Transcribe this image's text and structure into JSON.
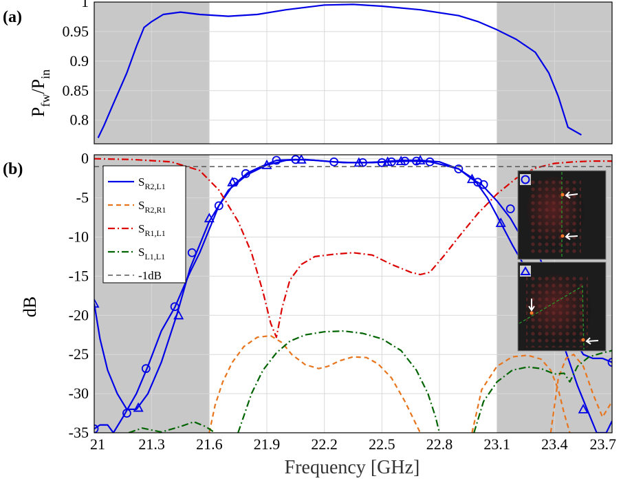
{
  "colors": {
    "shade": "#c8c8c8",
    "grid": "#d9d9d9",
    "blue": "#0000e6",
    "orange": "#e8741c",
    "red": "#dd0000",
    "green": "#006400",
    "ref": "#555555"
  },
  "chart_data": [
    {
      "panel": "(a)",
      "type": "line",
      "ylabel": "P_fw/P_in",
      "ylabel_main": "P",
      "ylabel_sub1": "fw",
      "ylabel_mid": "/P",
      "ylabel_sub2": "in",
      "xlim": [
        21,
        23.7
      ],
      "ylim": [
        0.76,
        1.0
      ],
      "yticks": [
        "1",
        "0.95",
        "0.9",
        "0.85",
        "0.8"
      ],
      "yticks_values": [
        1.0,
        0.95,
        0.9,
        0.85,
        0.8
      ],
      "shaded_bands": [
        [
          21,
          21.6
        ],
        [
          23.1,
          23.7
        ]
      ],
      "grid": true,
      "series": [
        {
          "color": "blue",
          "x": [
            21.02,
            21.05,
            21.1,
            21.17,
            21.22,
            21.26,
            21.3,
            21.36,
            21.45,
            21.55,
            21.7,
            21.85,
            22.0,
            22.2,
            22.35,
            22.5,
            22.7,
            22.9,
            23.0,
            23.1,
            23.2,
            23.3,
            23.37,
            23.42,
            23.47,
            23.54
          ],
          "y": [
            0.77,
            0.79,
            0.828,
            0.88,
            0.925,
            0.957,
            0.967,
            0.979,
            0.983,
            0.979,
            0.976,
            0.979,
            0.987,
            0.995,
            0.996,
            0.993,
            0.987,
            0.977,
            0.967,
            0.953,
            0.937,
            0.915,
            0.88,
            0.84,
            0.788,
            0.775
          ]
        }
      ]
    },
    {
      "panel": "(b)",
      "type": "line",
      "xlabel": "Frequency [GHz]",
      "ylabel": "dB",
      "xlim": [
        21,
        23.7
      ],
      "ylim": [
        -35,
        0.5
      ],
      "xticks": [
        "21",
        "21.3",
        "21.6",
        "21.9",
        "22.2",
        "22.5",
        "22.8",
        "23.1",
        "23.4",
        "23.7"
      ],
      "xticks_values": [
        21.0,
        21.3,
        21.6,
        21.9,
        22.2,
        22.5,
        22.8,
        23.1,
        23.4,
        23.7
      ],
      "yticks": [
        "0",
        "-5",
        "-10",
        "-15",
        "-20",
        "-25",
        "-30",
        "-35"
      ],
      "yticks_values": [
        0,
        -5,
        -10,
        -15,
        -20,
        -25,
        -30,
        -35
      ],
      "shaded_bands": [
        [
          21,
          21.6
        ],
        [
          23.1,
          23.7
        ]
      ],
      "grid": true,
      "legend_position": "top-left",
      "legend": [
        {
          "main": "S",
          "sub": "R2,L1",
          "color": "blue",
          "dash": "solid"
        },
        {
          "main": "S",
          "sub": "R2,R1",
          "color": "orange",
          "dash": "dashed"
        },
        {
          "main": "S",
          "sub": "R1,L1",
          "color": "red",
          "dash": "dashdot"
        },
        {
          "main": "S",
          "sub": "L1,L1",
          "color": "green",
          "dash": "dashdot"
        },
        {
          "main": "-1dB",
          "sub": "",
          "color": "ref",
          "dash": "dashed"
        }
      ],
      "series": [
        {
          "name": "S_R2,L1 (circle markers)",
          "color": "blue",
          "dash": "solid",
          "marker": "circle",
          "x": [
            21.0,
            21.03,
            21.07,
            21.1,
            21.15,
            21.22,
            21.28,
            21.35,
            21.42,
            21.5,
            21.55,
            21.65,
            21.72,
            21.8,
            21.87,
            21.95,
            22.05,
            22.15,
            22.25,
            22.35,
            22.45,
            22.55,
            22.65,
            22.75,
            22.82,
            22.9,
            22.97,
            23.02,
            23.1,
            23.17,
            23.25,
            23.32,
            23.38,
            23.42,
            23.46,
            23.5,
            23.55,
            23.6,
            23.65,
            23.7
          ],
          "y": [
            -34.5,
            -34,
            -34,
            -35,
            -33,
            -30,
            -26.5,
            -22,
            -19,
            -14.5,
            -12,
            -6,
            -3.5,
            -1.8,
            -1,
            -0.2,
            -0.1,
            -0.2,
            -0.4,
            -0.5,
            -0.5,
            -0.4,
            -0.3,
            -0.4,
            -0.8,
            -1.3,
            -2.6,
            -3.3,
            -5.4,
            -7.6,
            -11,
            -12.5,
            -16,
            -17.5,
            -20,
            -23,
            -25,
            -25.5,
            -25.5,
            -26
          ],
          "marker_x": [
            21.0,
            21.17,
            21.27,
            21.42,
            21.51,
            21.65,
            21.73,
            21.79,
            21.95,
            22.05,
            22.25,
            22.4,
            22.5,
            22.55,
            22.62,
            22.68,
            22.75,
            22.9,
            23.0,
            23.03,
            23.17,
            23.7
          ],
          "marker_y": [
            -34.5,
            -32.5,
            -26.8,
            -18.9,
            -12,
            -6,
            -3,
            -1.9,
            -0.2,
            -0.1,
            -0.4,
            -0.5,
            -0.5,
            -0.4,
            -0.3,
            -0.3,
            -0.4,
            -1.3,
            -3,
            -3.3,
            -6.4,
            -26
          ]
        },
        {
          "name": "S_R2,L1 (triangle markers)",
          "color": "blue",
          "dash": "solid",
          "marker": "triangle",
          "x": [
            21.0,
            21.03,
            21.07,
            21.12,
            21.17,
            21.22,
            21.28,
            21.35,
            21.43,
            21.5,
            21.6,
            21.7,
            21.8,
            21.9,
            22.0,
            22.1,
            22.2,
            22.3,
            22.4,
            22.5,
            22.6,
            22.7,
            22.8,
            22.9,
            22.98,
            23.05,
            23.12,
            23.18,
            23.25,
            23.32,
            23.38,
            23.45,
            23.52,
            23.57,
            23.62,
            23.67,
            23.7
          ],
          "y": [
            -18.5,
            -23,
            -27,
            -30,
            -32,
            -32,
            -30,
            -26,
            -20,
            -14,
            -8,
            -4,
            -2,
            -0.8,
            -0.2,
            -0.1,
            -0.3,
            -0.5,
            -0.5,
            -0.4,
            -0.2,
            -0.2,
            -0.4,
            -1.3,
            -2.6,
            -5,
            -8.2,
            -11,
            -14,
            -17.5,
            -21,
            -24,
            -29,
            -32,
            -35,
            -35,
            -33.5
          ],
          "marker_x": [
            21.0,
            21.23,
            21.44,
            21.6,
            21.72,
            21.9,
            22.08,
            22.38,
            22.53,
            22.6,
            22.7,
            22.97,
            23.12,
            23.55
          ],
          "marker_y": [
            -18.5,
            -31.8,
            -20,
            -7.6,
            -3,
            -0.8,
            -0.1,
            -0.5,
            -0.4,
            -0.3,
            -0.2,
            -2.6,
            -8.2,
            -32
          ]
        },
        {
          "name": "S_R2,R1",
          "color": "orange",
          "dash": "dashed",
          "x": [
            21.55,
            21.6,
            21.65,
            21.7,
            21.75,
            21.8,
            21.85,
            21.9,
            21.95,
            22.0,
            22.05,
            22.1,
            22.15,
            22.2,
            22.25,
            22.3,
            22.35,
            22.4,
            22.45,
            22.5,
            22.55,
            22.6,
            22.65,
            22.7,
            22.75,
            22.8,
            22.85
          ],
          "y": [
            -35,
            -32,
            -29,
            -27,
            -25.5,
            -24,
            -23,
            -22.5,
            -22.8,
            -24,
            -25.5,
            -26.5,
            -27,
            -26.5,
            -26,
            -25.5,
            -25.2,
            -25.5,
            -26.5,
            -28,
            -30,
            -32.5,
            -34.5,
            -35,
            -35,
            -35,
            -35
          ],
          "segments": [
            {
              "x": [
                21.6,
                21.63,
                21.67,
                21.72,
                21.78,
                21.85,
                21.92,
                21.98,
                22.03,
                22.1,
                22.17,
                22.22,
                22.28,
                22.35,
                22.42,
                22.48,
                22.55,
                22.62,
                22.67,
                22.7
              ],
              "y": [
                -35,
                -31.5,
                -28.5,
                -26,
                -24,
                -22.8,
                -22.6,
                -23.5,
                -25,
                -26.3,
                -26.8,
                -26.5,
                -25.8,
                -25.3,
                -25.4,
                -26.2,
                -28,
                -31,
                -33.5,
                -35
              ]
            },
            {
              "x": [
                22.97,
                23.02,
                23.1,
                23.18,
                23.26,
                23.33,
                23.38,
                23.42,
                23.45,
                23.48
              ],
              "y": [
                -35,
                -29.5,
                -26.5,
                -25.3,
                -25.1,
                -25.6,
                -27,
                -29.5,
                -32.5,
                -35
              ]
            },
            {
              "x": [
                23.38,
                23.42,
                23.46,
                23.5,
                23.55,
                23.6,
                23.65,
                23.7
              ],
              "y": [
                -35,
                -28,
                -25.5,
                -25,
                -26.5,
                -30,
                -33,
                -31
              ]
            }
          ]
        },
        {
          "name": "S_R1,L1",
          "color": "red",
          "dash": "dashdot",
          "x": [
            21.0,
            21.2,
            21.4,
            21.55,
            21.65,
            21.75,
            21.82,
            21.88,
            21.92,
            21.95,
            21.98,
            22.02,
            22.08,
            22.15,
            22.25,
            22.35,
            22.45,
            22.55,
            22.65,
            22.7,
            22.75,
            22.82,
            22.9,
            23.0,
            23.1,
            23.2,
            23.3,
            23.4,
            23.5,
            23.6,
            23.7
          ],
          "y": [
            0,
            -0.1,
            -0.4,
            -1.5,
            -4,
            -8,
            -12,
            -17,
            -21,
            -22.8,
            -19,
            -15.5,
            -13.5,
            -12.5,
            -12.2,
            -12,
            -12.3,
            -13.5,
            -14.5,
            -14.8,
            -14.5,
            -12.5,
            -10,
            -7,
            -4.5,
            -2.5,
            -1.2,
            -0.6,
            -0.4,
            -0.3,
            -0.3
          ]
        },
        {
          "name": "S_L1,L1",
          "color": "green",
          "dash": "dashdot",
          "segments": [
            {
              "x": [
                21.18,
                21.25,
                21.35,
                21.45,
                21.52,
                21.58,
                21.63
              ],
              "y": [
                -35,
                -34.4,
                -34.9,
                -34.2,
                -33.6,
                -34.2,
                -35
              ]
            },
            {
              "x": [
                21.75,
                21.82,
                21.88,
                21.95,
                22.02,
                22.1,
                22.2,
                22.3,
                22.4,
                22.5,
                22.6,
                22.68,
                22.74,
                22.78,
                22.8
              ],
              "y": [
                -35,
                -30,
                -27,
                -24.8,
                -23.3,
                -22.5,
                -22.1,
                -22,
                -22.3,
                -23,
                -24.5,
                -27,
                -30,
                -33,
                -35
              ]
            },
            {
              "x": [
                22.98,
                23.03,
                23.1,
                23.18,
                23.26,
                23.33,
                23.4,
                23.45,
                23.48,
                23.52,
                23.58,
                23.65,
                23.7
              ],
              "y": [
                -35,
                -31,
                -28.5,
                -27,
                -26.6,
                -26.8,
                -27.5,
                -27.4,
                -28.5,
                -26.5,
                -25.3,
                -24.8,
                -24.5
              ]
            }
          ]
        },
        {
          "name": "-1dB",
          "color": "ref",
          "dash": "dashed",
          "x": [
            21.0,
            23.7
          ],
          "y": [
            -1,
            -1
          ]
        }
      ]
    }
  ],
  "insets": [
    {
      "marker": "circle",
      "name": "field-plot-circle"
    },
    {
      "marker": "triangle",
      "name": "field-plot-triangle"
    }
  ]
}
